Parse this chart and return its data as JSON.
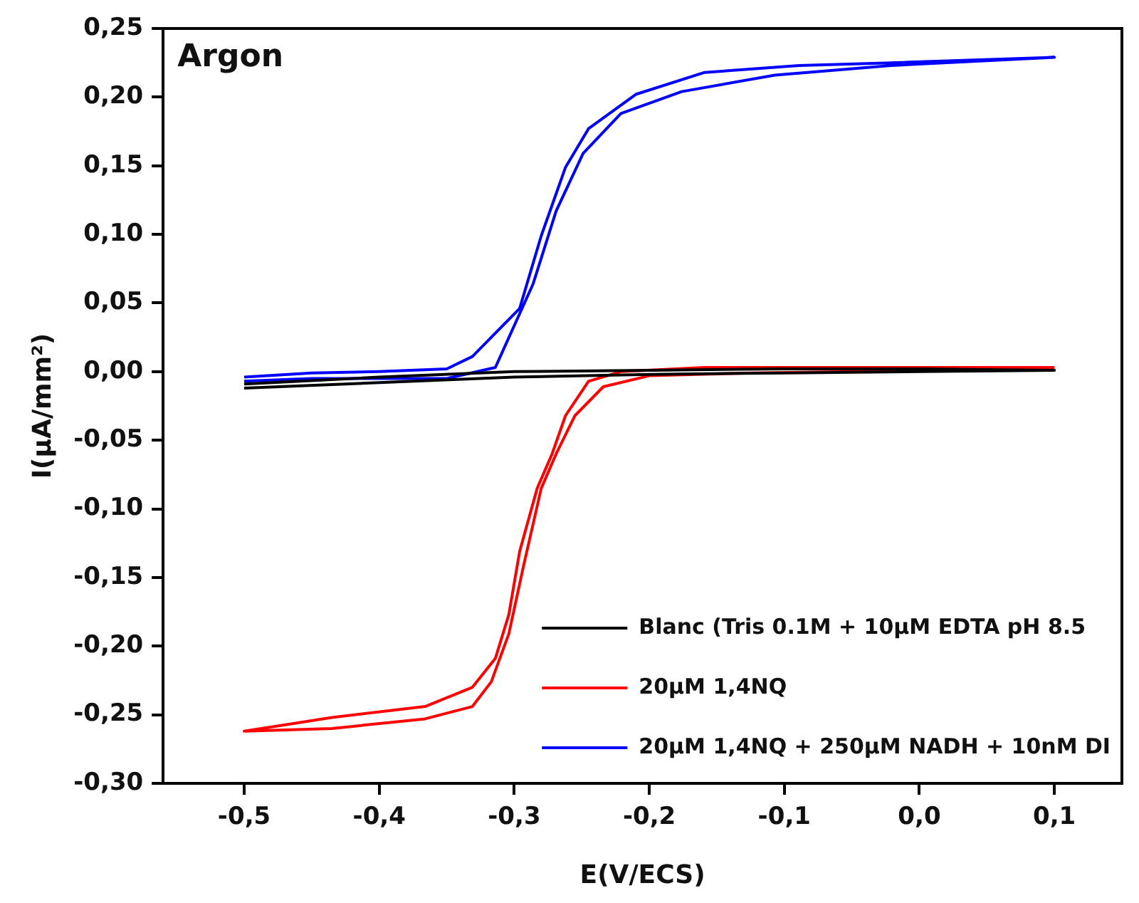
{
  "chart_data": {
    "type": "line",
    "xlabel": "E(V/ECS)",
    "ylabel": "I(µA/mm²)",
    "annotations": [
      "Argon"
    ],
    "legend": "bottom right",
    "xlim": [
      -0.56,
      0.15
    ],
    "xticks": [
      {
        "value": -0.5,
        "label": "-0,5"
      },
      {
        "value": -0.4,
        "label": "-0,4"
      },
      {
        "value": -0.3,
        "label": "-0,3"
      },
      {
        "value": -0.2,
        "label": "-0,2"
      },
      {
        "value": -0.1,
        "label": "-0,1"
      },
      {
        "value": 0,
        "label": "0,0"
      },
      {
        "value": 0.1,
        "label": "0,1"
      }
    ],
    "ylim": [
      -0.3,
      0.25
    ],
    "yticks": [
      {
        "value": -0.3,
        "label": "-0,30"
      },
      {
        "value": -0.25,
        "label": "-0,25"
      },
      {
        "value": -0.2,
        "label": "-0,20"
      },
      {
        "value": -0.15,
        "label": "-0,15"
      },
      {
        "value": -0.1,
        "label": "-0,10"
      },
      {
        "value": -0.05,
        "label": "-0,05"
      },
      {
        "value": 0,
        "label": "0,00"
      },
      {
        "value": 0.05,
        "label": "0,05"
      },
      {
        "value": 0.1,
        "label": "0,10"
      },
      {
        "value": 0.15,
        "label": "0,15"
      },
      {
        "value": 0.2,
        "label": "0,20"
      },
      {
        "value": 0.25,
        "label": "0,25"
      }
    ],
    "grid": false,
    "series": [
      {
        "name": "Blanc (Tris 0.1M + 10µM EDTA pH 8.5",
        "color": "#000000",
        "x": [
          -0.5,
          -0.4,
          -0.3,
          -0.2,
          -0.1,
          0,
          0.1,
          0,
          -0.1,
          -0.2,
          -0.3,
          -0.4,
          -0.5
        ],
        "values": [
          -0.012,
          -0.008,
          -0.004,
          -0.002,
          -0.001,
          0,
          0.001,
          0.002,
          0.002,
          0.001,
          0,
          -0.004,
          -0.009
        ]
      },
      {
        "name": "20µM 1,4NQ",
        "color": "#ff0000",
        "x": [
          0.1,
          -0.125,
          -0.2,
          -0.234,
          -0.255,
          -0.269,
          -0.28,
          -0.293,
          -0.304,
          -0.317,
          -0.331,
          -0.366,
          -0.435,
          -0.5,
          -0.435,
          -0.366,
          -0.331,
          -0.314,
          -0.304,
          -0.296,
          -0.283,
          -0.272,
          -0.262,
          -0.245,
          -0.221,
          -0.159,
          0.1
        ],
        "values": [
          0.002,
          -0.001,
          -0.003,
          -0.011,
          -0.032,
          -0.06,
          -0.085,
          -0.141,
          -0.191,
          -0.226,
          -0.244,
          -0.253,
          -0.26,
          -0.262,
          -0.252,
          -0.244,
          -0.23,
          -0.209,
          -0.177,
          -0.131,
          -0.085,
          -0.06,
          -0.032,
          -0.007,
          0,
          0.003,
          0.003
        ]
      },
      {
        "name": "20µM 1,4NQ + 250µM NADH + 10nM DI",
        "color": "#0000ff",
        "x": [
          -0.5,
          -0.45,
          -0.4,
          -0.35,
          -0.314,
          -0.286,
          -0.269,
          -0.249,
          -0.221,
          -0.176,
          -0.107,
          -0.021,
          0.1,
          -0.021,
          -0.089,
          -0.159,
          -0.21,
          -0.245,
          -0.262,
          -0.28,
          -0.296,
          -0.331,
          -0.35,
          -0.4,
          -0.45,
          -0.5
        ],
        "values": [
          -0.007,
          -0.005,
          -0.005,
          -0.005,
          0.003,
          0.064,
          0.117,
          0.159,
          0.188,
          0.204,
          0.216,
          0.223,
          0.229,
          0.225,
          0.223,
          0.218,
          0.202,
          0.177,
          0.149,
          0.099,
          0.046,
          0.011,
          0.002,
          0,
          -0.001,
          -0.004
        ]
      }
    ]
  }
}
